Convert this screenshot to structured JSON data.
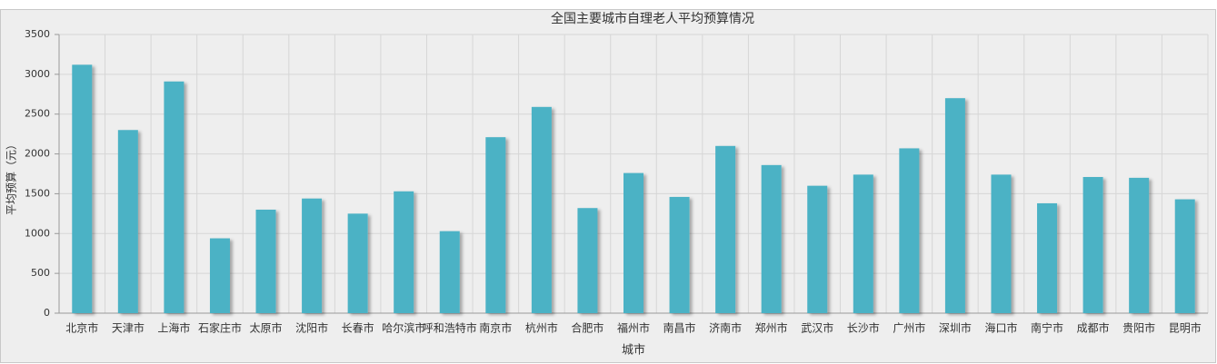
{
  "chart_data": {
    "type": "bar",
    "title": "全国主要城市自理老人平均预算情况",
    "x_label": "城市",
    "y_label": "平均预算（元）",
    "categories": [
      "北京市",
      "天津市",
      "上海市",
      "石家庄市",
      "太原市",
      "沈阳市",
      "长春市",
      "哈尔滨市",
      "呼和浩特市",
      "南京市",
      "杭州市",
      "合肥市",
      "福州市",
      "南昌市",
      "济南市",
      "郑州市",
      "武汉市",
      "长沙市",
      "广州市",
      "深圳市",
      "海口市",
      "南宁市",
      "成都市",
      "贵阳市",
      "昆明市"
    ],
    "values": [
      3120,
      2300,
      2910,
      940,
      1300,
      1440,
      1250,
      1530,
      1030,
      2210,
      2590,
      1320,
      1760,
      1460,
      2100,
      1860,
      1600,
      1740,
      2070,
      2700,
      1740,
      1380,
      1710,
      1700,
      1430
    ],
    "color": "#4bb2c5",
    "ylim": [
      0,
      3500
    ],
    "yticks": [
      0,
      500,
      1000,
      1500,
      2000,
      2500,
      3000,
      3500
    ],
    "grid": true
  }
}
